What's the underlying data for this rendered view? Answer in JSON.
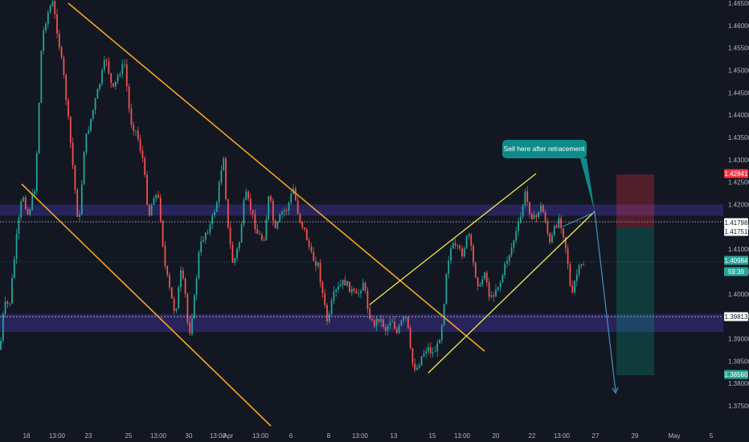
{
  "chart_data": {
    "type": "candlestick",
    "symbol_theme": "dark",
    "y_axis": {
      "ylim": [
        1.3725,
        1.4655
      ],
      "ticks": [
        "1.46500",
        "1.46000",
        "1.45500",
        "1.45000",
        "1.44500",
        "1.44000",
        "1.43500",
        "1.43000",
        "1.42500",
        "1.42000",
        "1.41500",
        "1.41000",
        "1.40500",
        "1.40000",
        "1.39500",
        "1.39000",
        "1.38500",
        "1.38000",
        "1.37500"
      ]
    },
    "x_axis": {
      "ticks": [
        "18",
        "13:00",
        "23",
        "25",
        "13:00",
        "30",
        "13:00",
        "Apr",
        "13:00",
        "6",
        "8",
        "13:00",
        "13",
        "15",
        "13:00",
        "20",
        "22",
        "13:00",
        "27",
        "29",
        "May",
        "5"
      ]
    },
    "price_tags": [
      {
        "label": "1.42841",
        "value": 1.42841,
        "color": "#f23645",
        "role": "stop-loss"
      },
      {
        "label": "1.41798",
        "value": 1.41798,
        "color": "#ffffff",
        "role": "marker"
      },
      {
        "label": "1.41751",
        "value": 1.41751,
        "color": "#ffffff",
        "role": "marker"
      },
      {
        "label": "1.40984",
        "value": 1.40984,
        "color": "#26a69a",
        "role": "last-price"
      },
      {
        "label": "59:39",
        "value": 1.4085,
        "color": "#26a69a",
        "role": "countdown"
      },
      {
        "label": "1.39813",
        "value": 1.39813,
        "color": "#ffffff",
        "role": "marker"
      },
      {
        "label": "1.38560",
        "value": 1.3856,
        "color": "#26a69a",
        "role": "take-profit"
      }
    ],
    "zones": [
      {
        "name": "resistance-zone",
        "from": 1.4175,
        "to": 1.42,
        "color": "#3a2f8a"
      },
      {
        "name": "support-zone",
        "from": 1.3915,
        "to": 1.3955,
        "color": "#3a2f8a"
      }
    ],
    "annotation": "Sell here after retracement",
    "colors": {
      "up": "#26a69a",
      "down": "#ef5350",
      "channel_orange": "#f5a623",
      "channel_yellow": "#f2e94e",
      "arrow": "#4a90c8"
    }
  }
}
